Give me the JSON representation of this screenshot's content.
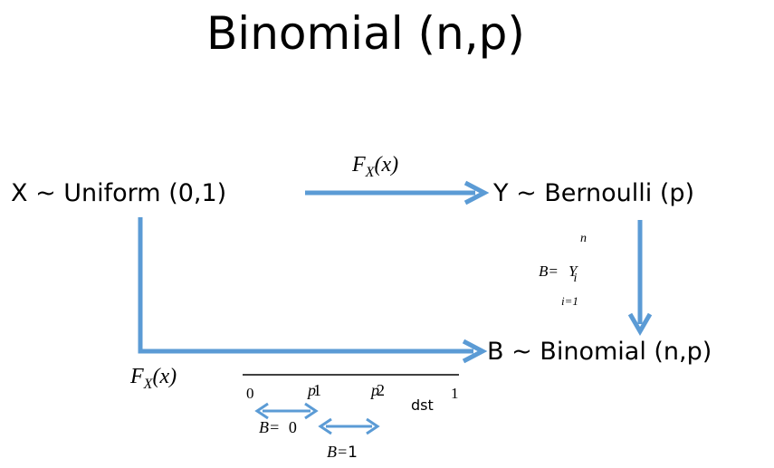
{
  "title": "Binomial   (n,p)",
  "colors": {
    "arrow": "#5b9bd5",
    "text": "#000000",
    "axis_line": "#000000"
  },
  "nodes": {
    "uniform": "X ~ Uniform (0,1)",
    "bernoulli": "Y ~ Bernoulli (p)",
    "binomial": "B ~ Binomial (n,p)"
  },
  "edge_labels": {
    "top_F": "F",
    "top_F_sub": "X",
    "top_F_arg": "(x)",
    "bottom_F": "F",
    "bottom_F_sub": "X",
    "bottom_F_arg": "(x)"
  },
  "sum_formula": {
    "B_eq": "B=",
    "Y": "Y",
    "sub_i": "i",
    "upper": "n",
    "lower": "i=1"
  },
  "number_line": {
    "zero": "0",
    "p1": "p",
    "p1_suffix": "1",
    "p2": "p",
    "p2_suffix": "2",
    "dst": "dst",
    "one": "1"
  },
  "interval_labels": {
    "b0_prefix": "B=",
    "b0_value": "0",
    "b1_prefix": "B=",
    "b1_value": "1"
  }
}
